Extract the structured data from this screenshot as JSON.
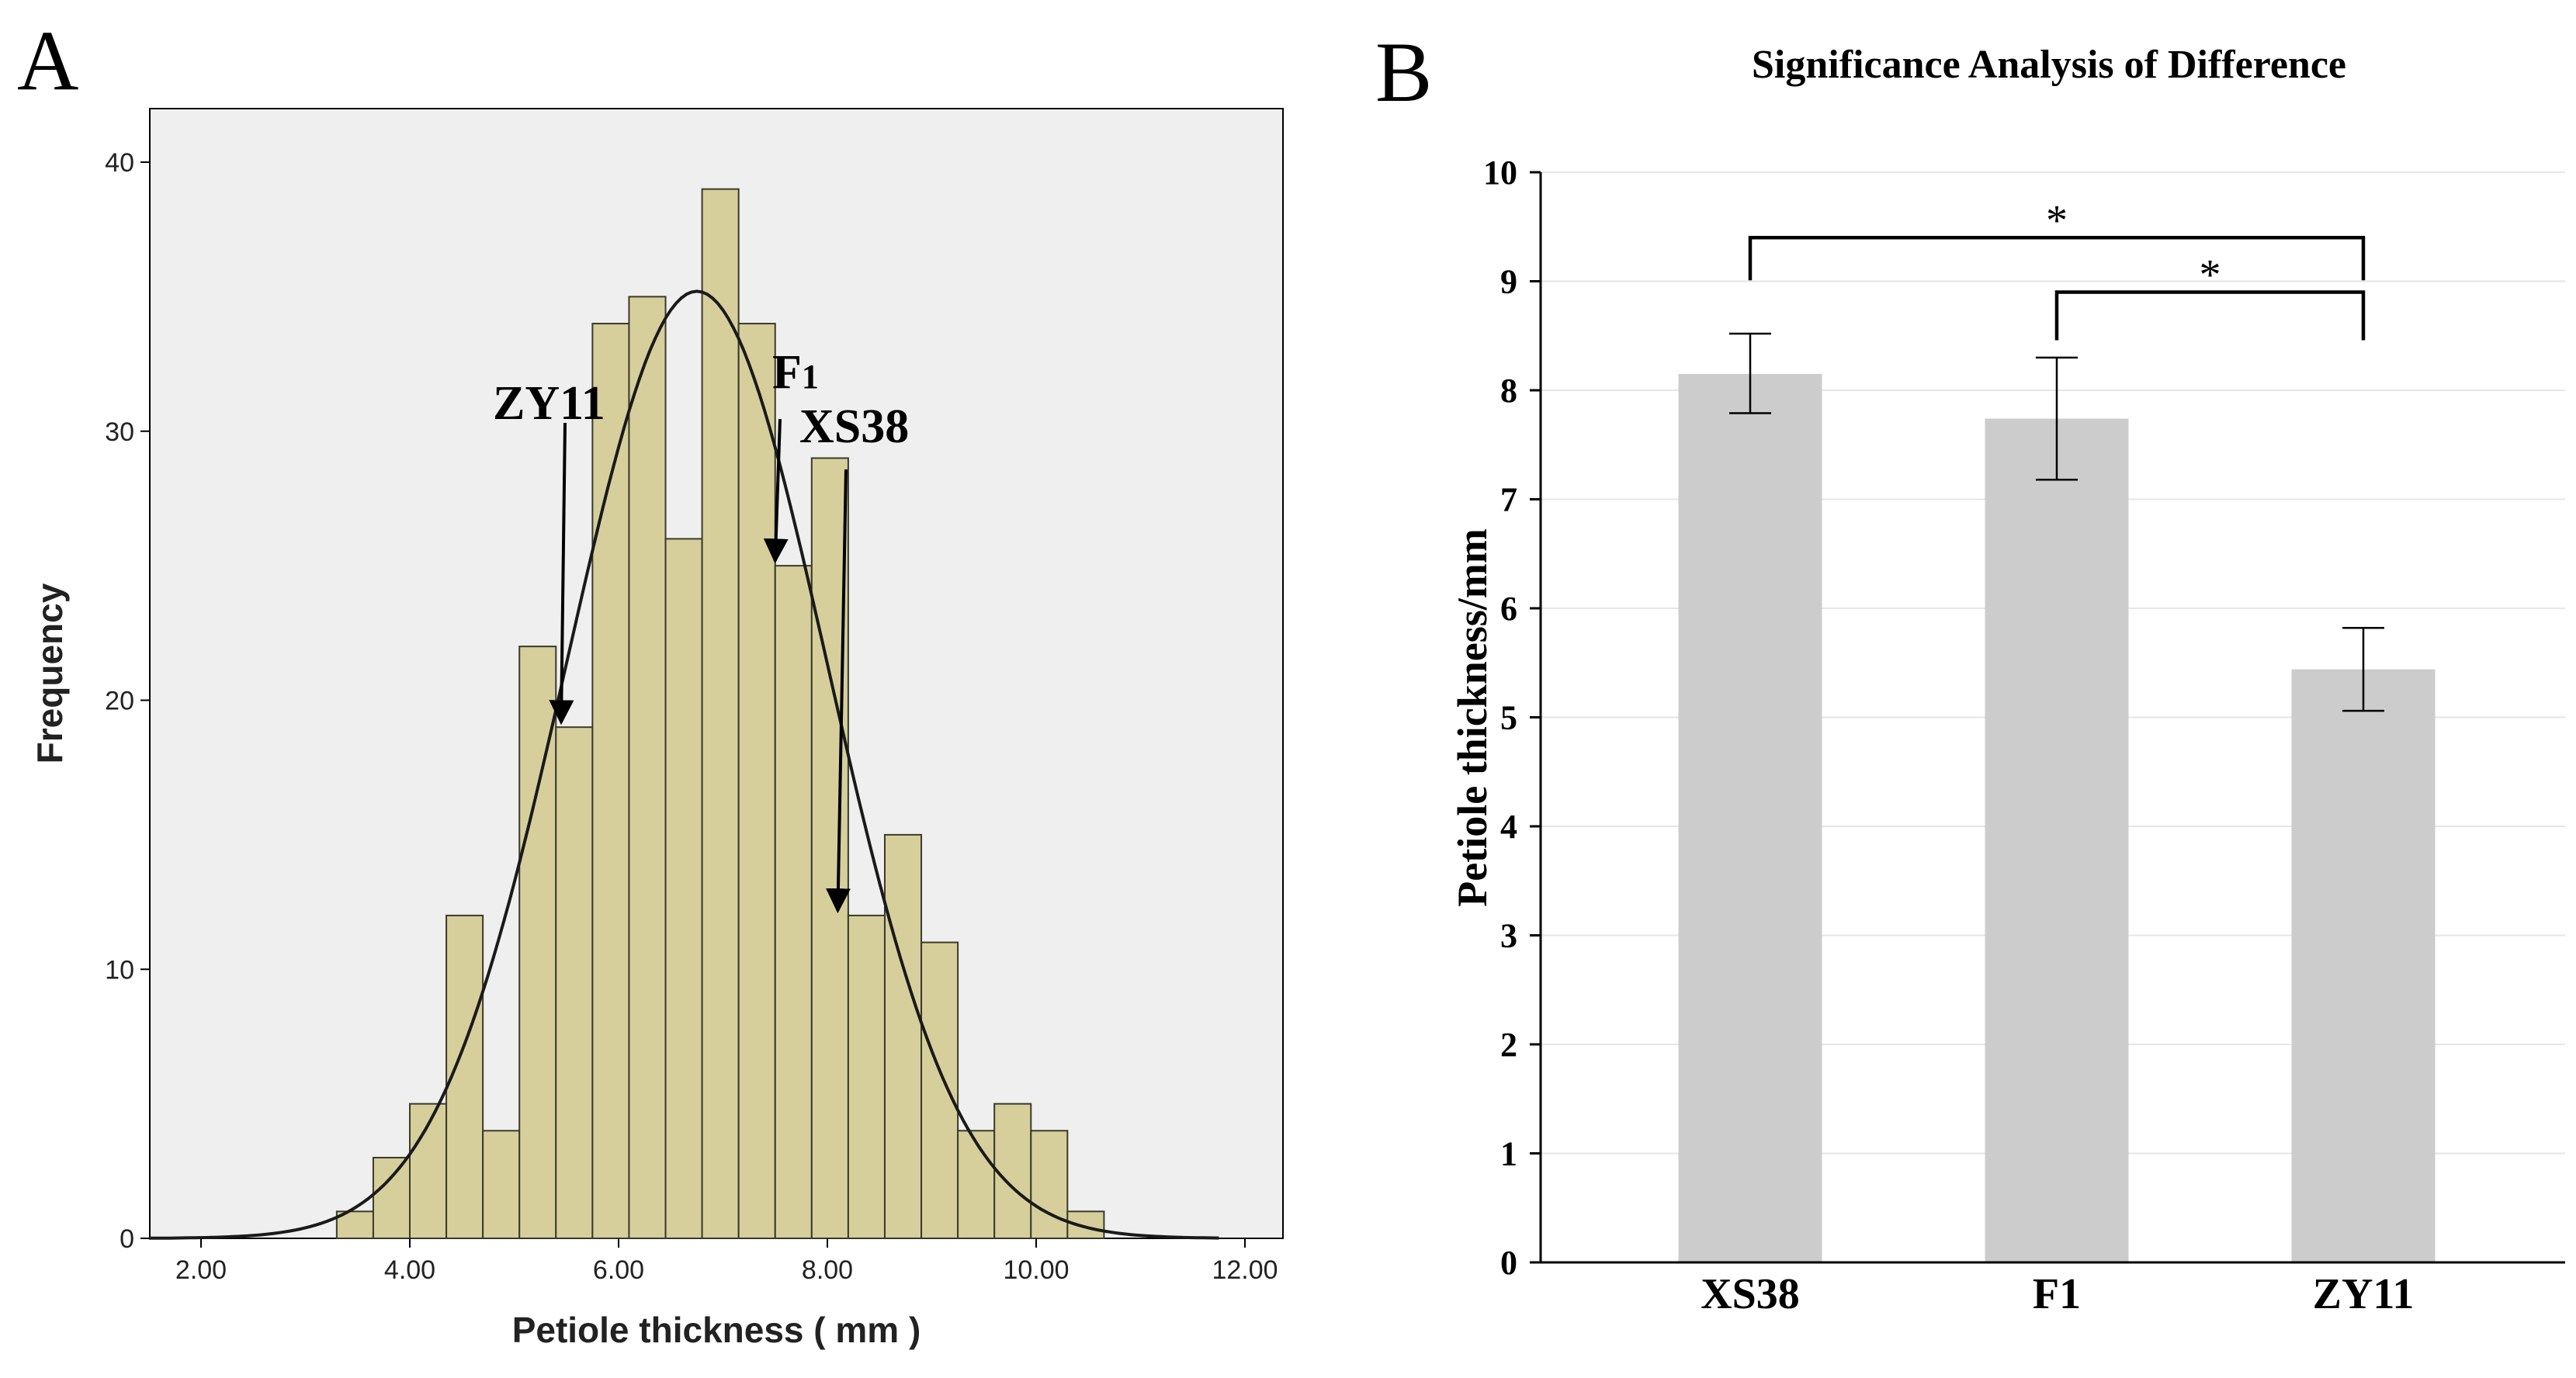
{
  "chart_data": [
    {
      "panel_label": "A",
      "type": "bar",
      "subtype": "histogram-with-normal-curve",
      "xlabel": "Petiole thickness ( mm )",
      "ylabel": "Frequency",
      "xlim": [
        1.5,
        12.3
      ],
      "ylim": [
        0,
        40
      ],
      "xticks": [
        {
          "v": 2,
          "label": "2.00"
        },
        {
          "v": 4,
          "label": "4.00"
        },
        {
          "v": 6,
          "label": "6.00"
        },
        {
          "v": 8,
          "label": "8.00"
        },
        {
          "v": 10,
          "label": "10.00"
        },
        {
          "v": 12,
          "label": "12.00"
        }
      ],
      "yticks": [
        {
          "v": 0,
          "label": "0"
        },
        {
          "v": 10,
          "label": "10"
        },
        {
          "v": 20,
          "label": "20"
        },
        {
          "v": 30,
          "label": "30"
        },
        {
          "v": 40,
          "label": "40"
        }
      ],
      "bin_start": 3.3,
      "bin_width": 0.35,
      "counts": [
        1,
        3,
        5,
        12,
        4,
        22,
        19,
        34,
        35,
        26,
        39,
        34,
        25,
        29,
        12,
        15,
        11,
        4,
        5,
        4,
        1
      ],
      "normal_curve": {
        "mean": 6.75,
        "sd": 1.25,
        "peak": 35.2
      },
      "annotations": [
        {
          "text": "ZY11",
          "x": 5.45,
          "y": 19
        },
        {
          "text": "F",
          "sub": "1",
          "x": 7.5,
          "y": 25
        },
        {
          "text": "XS38",
          "x": 8.1,
          "y": 12
        }
      ],
      "colors": {
        "bar": "#d6cf9c",
        "bar_edge": "#3a3a2a",
        "bg": "#efefef",
        "curve": "#1a1a1a"
      }
    },
    {
      "panel_label": "B",
      "type": "bar",
      "title": "Significance Analysis of Difference",
      "ylabel": "Petiole thickness/mm",
      "xlabel": "",
      "ylim": [
        0,
        10
      ],
      "yticks": [
        "0",
        "1",
        "2",
        "3",
        "4",
        "5",
        "6",
        "7",
        "8",
        "9",
        "10"
      ],
      "categories": [
        "XS38",
        "F1",
        "ZY11"
      ],
      "values": [
        8.15,
        7.74,
        5.44
      ],
      "errors": [
        [
          7.79,
          8.52
        ],
        [
          7.18,
          8.3
        ],
        [
          5.06,
          5.82
        ]
      ],
      "significance": [
        {
          "from": 0,
          "to": 2,
          "label": "*",
          "level": 9.4
        },
        {
          "from": 1,
          "to": 2,
          "label": "*",
          "level": 8.9
        }
      ],
      "colors": {
        "bar": "#cccccc",
        "grid": "#e6e6e6",
        "axis": "#000000"
      }
    }
  ]
}
